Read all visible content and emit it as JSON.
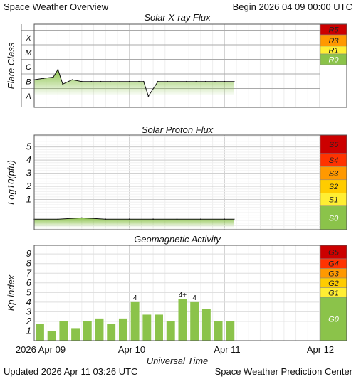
{
  "header": {
    "title": "Space Weather Overview",
    "begin_label": "Begin",
    "begin_value": "2026 04 09 00:00 UTC"
  },
  "footer": {
    "updated_label": "Updated",
    "updated_value": "2026 Apr 11 03:26 UTC",
    "source": "Space Weather Prediction Center"
  },
  "time_axis": {
    "title": "Universal Time",
    "tick_labels": [
      "2026 Apr 09",
      "Apr 10",
      "Apr 11",
      "Apr 12"
    ],
    "span_days": 3
  },
  "colors": {
    "series_green": "#8bc34a",
    "green_scale": "#8bc34a",
    "level_1": "#ffee33",
    "level_2": "#ffcc00",
    "level_3": "#ff9900",
    "level_4": "#ff3300",
    "level_5": "#cc0000",
    "grid": "#dddddd"
  },
  "chart_data": [
    {
      "type": "area",
      "title": "Solar X-ray Flux",
      "ylabel": "Flare Class",
      "y_scale": "log",
      "classes": [
        "A",
        "B",
        "C",
        "M",
        "X"
      ],
      "x_days": [
        0,
        0.1,
        0.2,
        0.25,
        0.3,
        0.4,
        0.5,
        0.6,
        0.7,
        0.8,
        0.9,
        1.0,
        1.1,
        1.15,
        1.2,
        1.3,
        1.4,
        1.5,
        1.6,
        1.7,
        1.8,
        1.9,
        2.0,
        2.1
      ],
      "y_class": [
        "B4",
        "B5",
        "B6",
        "C2",
        "B2",
        "B4",
        "B3",
        "B3",
        "B3",
        "B3",
        "B3",
        "B3",
        "B3",
        "B3",
        "A3",
        "B3",
        "B3",
        "B3",
        "B3",
        "B3",
        "B3",
        "B3",
        "B3",
        "B3"
      ],
      "scale": [
        {
          "label": "R5",
          "color": "#cc0000"
        },
        {
          "label": "R3",
          "color": "#ff9900"
        },
        {
          "label": "R1",
          "color": "#ffee33"
        },
        {
          "label": "R0",
          "color": "#8bc34a"
        }
      ]
    },
    {
      "type": "area",
      "title": "Solar Proton Flux",
      "ylabel": "Log10(pfu)",
      "y_ticks": [
        "1",
        "2",
        "3",
        "4",
        "5"
      ],
      "ylim": [
        -1.3,
        5.9
      ],
      "x_days": [
        0,
        0.25,
        0.5,
        0.75,
        1.0,
        1.25,
        1.5,
        1.75,
        2.0,
        2.1
      ],
      "y_log_pfu": [
        -0.5,
        -0.5,
        -0.4,
        -0.5,
        -0.5,
        -0.5,
        -0.5,
        -0.5,
        -0.5,
        -0.5
      ],
      "scale": [
        {
          "label": "S5",
          "color": "#cc0000"
        },
        {
          "label": "S4",
          "color": "#ff3300"
        },
        {
          "label": "S3",
          "color": "#ff9900"
        },
        {
          "label": "S2",
          "color": "#ffcc00"
        },
        {
          "label": "S1",
          "color": "#ffee33"
        },
        {
          "label": "S0",
          "color": "#8bc34a"
        }
      ]
    },
    {
      "type": "bar",
      "title": "Geomagnetic Activity",
      "ylabel": "Kp index",
      "y_ticks": [
        "1",
        "2",
        "3",
        "4",
        "5",
        "6",
        "7",
        "8",
        "9"
      ],
      "ylim": [
        0,
        9.9
      ],
      "bar_width_days": 0.104,
      "x_start_days": [
        0,
        0.125,
        0.25,
        0.375,
        0.5,
        0.625,
        0.75,
        0.875,
        1.0,
        1.125,
        1.25,
        1.375,
        1.5,
        1.625,
        1.75,
        1.875,
        2.0
      ],
      "values": [
        1.7,
        1.0,
        2.0,
        1.3,
        2.0,
        2.3,
        1.7,
        2.3,
        4.0,
        2.7,
        2.7,
        2.0,
        4.3,
        4.0,
        3.3,
        2.0,
        2.0
      ],
      "value_labels": [
        "",
        "",
        "",
        "",
        "",
        "",
        "",
        "",
        "4",
        "",
        "",
        "",
        "4+",
        "4",
        "",
        "",
        ""
      ],
      "scale": [
        {
          "label": "G5",
          "color": "#cc0000"
        },
        {
          "label": "G4",
          "color": "#ff3300"
        },
        {
          "label": "G3",
          "color": "#ff9900"
        },
        {
          "label": "G2",
          "color": "#ffcc00"
        },
        {
          "label": "G1",
          "color": "#ffee33"
        },
        {
          "label": "G0",
          "color": "#8bc34a"
        }
      ]
    }
  ]
}
